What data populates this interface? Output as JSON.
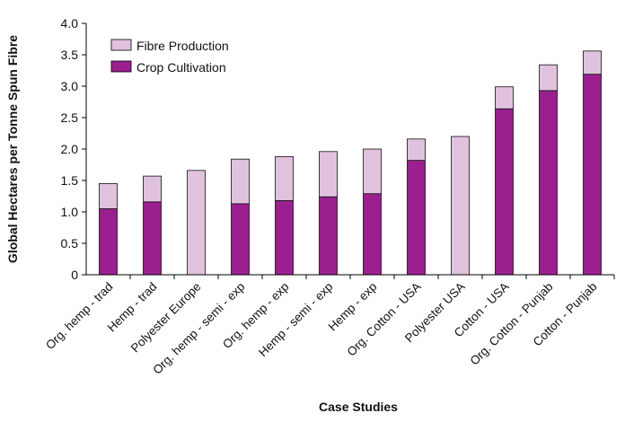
{
  "chart_data": {
    "type": "bar",
    "stacked": true,
    "categories": [
      "Org. hemp - trad",
      "Hemp - trad",
      "Polyester Europe",
      "Org. hemp - semi - exp",
      "Org. hemp - exp",
      "Hemp - semi - exp",
      "Hemp - exp",
      "Org. Cotton - USA",
      "Polyester USA",
      "Cotton - USA",
      "Org. Cotton - Punjab",
      "Cotton - Punjab"
    ],
    "series": [
      {
        "name": "Crop Cultivation",
        "color": "#9c1f8f",
        "values": [
          1.05,
          1.16,
          0.0,
          1.13,
          1.18,
          1.24,
          1.29,
          1.82,
          0.0,
          2.64,
          2.93,
          3.19
        ]
      },
      {
        "name": "Fibre Production",
        "color": "#e0c2df",
        "values": [
          0.4,
          0.41,
          1.66,
          0.71,
          0.7,
          0.72,
          0.71,
          0.34,
          2.2,
          0.35,
          0.41,
          0.37
        ]
      }
    ],
    "xlabel": "Case Studies",
    "ylabel": "Global Hectares per Tonne Spun Fibre",
    "ylim": [
      0,
      4.0
    ],
    "yticks": [
      "0",
      "0.5",
      "1.0",
      "1.5",
      "2.0",
      "2.5",
      "3.0",
      "3.5",
      "4.0"
    ],
    "grid": false,
    "legend": {
      "position": "top-left",
      "entries": [
        "Fibre Production",
        "Crop Cultivation"
      ]
    }
  }
}
